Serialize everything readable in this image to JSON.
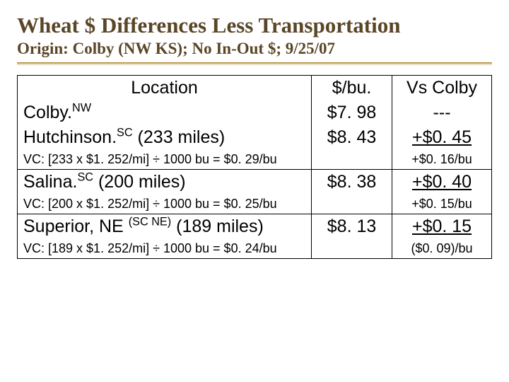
{
  "title": "Wheat $ Differences Less Transportation",
  "subtitle": "Origin: Colby (NW KS); No In-Out $; 9/25/07",
  "headers": {
    "location": "Location",
    "price": "$/bu.",
    "vs": "Vs Colby"
  },
  "rows": {
    "colby": {
      "label_pre": "Colby.",
      "label_sup": "NW",
      "label_post": "",
      "price": "$7. 98",
      "vs": "---"
    },
    "hutch": {
      "label_pre": "Hutchinson.",
      "label_sup": "SC",
      "label_post": " (233 miles)",
      "price": "$8. 43",
      "vs": "+$0. 45",
      "vc_note": "VC: [233 x $1. 252/mi] ÷ 1000 bu = $0. 29/bu",
      "vc_right": "+$0. 16/bu"
    },
    "salina": {
      "label_pre": "Salina.",
      "label_sup": "SC",
      "label_post": " (200 miles)",
      "price": "$8. 38",
      "vs": "+$0. 40",
      "vc_note": "VC: [200 x $1. 252/mi] ÷ 1000 bu = $0. 25/bu",
      "vc_right": "+$0. 15/bu"
    },
    "superior": {
      "label_pre": "Superior, NE ",
      "label_sup": "(SC NE)",
      "label_post": " (189 miles)",
      "price": "$8. 13",
      "vs": "+$0. 15",
      "vc_note": "VC: [189 x $1. 252/mi] ÷ 1000 bu = $0. 24/bu",
      "vc_right": "($0. 09)/bu"
    }
  },
  "style": {
    "title_color": "#5a4526",
    "rule_color": "#b89648",
    "border_color": "#000000",
    "bg_color": "#ffffff",
    "title_font": "Georgia",
    "body_font": "Arial",
    "title_fontsize": 31,
    "subtitle_fontsize": 23,
    "cell_fontsize": 25,
    "note_fontsize": 18
  }
}
